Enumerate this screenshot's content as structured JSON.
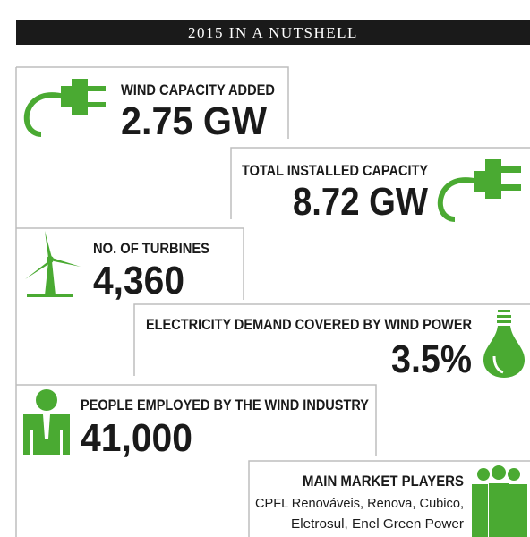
{
  "header": {
    "title": "2015 IN A NUTSHELL"
  },
  "stats": [
    {
      "label": "WIND CAPACITY ADDED",
      "value": "2.75 GW"
    },
    {
      "label": "TOTAL INSTALLED CAPACITY",
      "value": "8.72 GW"
    },
    {
      "label": "NO. OF TURBINES",
      "value": "4,360"
    },
    {
      "label": "ELECTRICITY DEMAND COVERED BY WIND POWER",
      "value": "3.5%"
    },
    {
      "label": "PEOPLE EMPLOYED BY THE WIND INDUSTRY",
      "value": "41,000"
    },
    {
      "label": "MAIN MARKET PLAYERS",
      "lines": [
        "CPFL Renováveis, Renova, Cubico,",
        "Eletrosul, Enel Green Power"
      ]
    }
  ]
}
